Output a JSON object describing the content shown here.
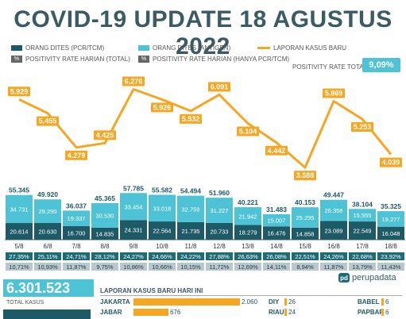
{
  "title": "COVID-19 UPDATE 18 AGUSTUS 2022",
  "legend": {
    "pcr": "ORANG DITES (PCR/TCM)",
    "antigen": "ORANG DITES (ANTIGEN)",
    "kasus": "LAPORAN KASUS BARU",
    "pos_total": "POSITIVITY RATE HARIAN (TOTAL)",
    "pos_pcr": "POSITIVITY RATE HARIAN (HANYA PCR/TCM)",
    "pos_rate_total_label": "POSITIVITY RATE TOTAL",
    "pos_rate_total_value": "9,09%",
    "pct_symbol": "%"
  },
  "colors": {
    "title": "#3a5a64",
    "pcr": "#1e5a66",
    "antigen": "#4ec3d6",
    "kasus": "#f5a623",
    "pos_total": "#1e6b78",
    "pos_pcr": "#b8c9cd"
  },
  "chart_data": {
    "type": "bar",
    "categories": [
      "5/8",
      "6/8",
      "7/8",
      "8/8",
      "9/8",
      "10/8",
      "11/8",
      "12/8",
      "13/8",
      "14/8",
      "15/8",
      "16/8",
      "17/8",
      "18/8"
    ],
    "series": [
      {
        "name": "ORANG DITES (PCR/TCM)",
        "values": [
          20614,
          20630,
          16700,
          14835,
          24331,
          22564,
          21735,
          20733,
          18279,
          16476,
          14858,
          23089,
          22549,
          16048
        ],
        "labels": [
          "20.614",
          "20.630",
          "16.700",
          "14.835",
          "24.331",
          "22.564",
          "21.735",
          "20.733",
          "18.279",
          "16.476",
          "14.858",
          "23.089",
          "22.549",
          "16.048"
        ]
      },
      {
        "name": "ORANG DITES (ANTIGEN)",
        "values": [
          34731,
          29290,
          19337,
          30530,
          33454,
          33018,
          32759,
          31227,
          21942,
          15007,
          25295,
          26358,
          15555,
          19277
        ],
        "labels": [
          "34.731",
          "29.290",
          "19.337",
          "30.530",
          "33.454",
          "33.018",
          "32.759",
          "31.227",
          "21.942",
          "15.007",
          "25.295",
          "26.358",
          "15.555",
          "19.277"
        ]
      },
      {
        "name": "LAPORAN KASUS BARU",
        "values": [
          5929,
          5455,
          4279,
          4425,
          6276,
          5926,
          5532,
          6091,
          5104,
          4442,
          3588,
          5869,
          5253,
          4039
        ],
        "labels": [
          "5.929",
          "5.455",
          "4.279",
          "4.425",
          "6.276",
          "5.926",
          "5.532",
          "6.091",
          "5.104",
          "4.442",
          "3.588",
          "5.869",
          "5.253",
          "4.039"
        ]
      },
      {
        "name": "POSITIVITY RATE HARIAN (TOTAL)",
        "values": [
          10.71,
          10.93,
          11.87,
          9.75,
          10.86,
          10.66,
          10.15,
          11.72,
          12.69,
          14.11,
          8.94,
          11.87,
          13.79,
          11.43
        ],
        "labels": [
          "10,71%",
          "10,93%",
          "11,87%",
          "9,75%",
          "10,86%",
          "10,66%",
          "10,15%",
          "11,72%",
          "12,69%",
          "14,11%",
          "8,94%",
          "11,87%",
          "13,79%",
          "11,43%"
        ]
      },
      {
        "name": "POSITIVITY RATE HARIAN (HANYA PCR/TCM)",
        "values": [
          27.35,
          25.11,
          24.71,
          28.12,
          24.27,
          24.66,
          24.22,
          27.88,
          26.63,
          26.08,
          22.51,
          24.26,
          22.68,
          23.92
        ],
        "labels": [
          "27,35%",
          "25,11%",
          "24,71%",
          "28,12%",
          "24,27%",
          "24,66%",
          "24,22%",
          "27,88%",
          "26,63%",
          "26,08%",
          "22,51%",
          "24,26%",
          "22,68%",
          "23,92%"
        ]
      }
    ],
    "totals": [
      55345,
      49920,
      36037,
      45365,
      57785,
      55582,
      54494,
      51960,
      40221,
      31483,
      40153,
      49447,
      38104,
      35325
    ],
    "total_labels": [
      "55.345",
      "49.920",
      "36.037",
      "45.365",
      "57.785",
      "55.582",
      "54.494",
      "51.960",
      "40.221",
      "31.483",
      "40.153",
      "49.447",
      "38.104",
      "35.325"
    ]
  },
  "summary": {
    "total_kasus_value": "6.301.523",
    "total_kasus_label": "TOTAL KASUS"
  },
  "brand": {
    "name": "perupadata",
    "mark": "pd"
  },
  "laporan": {
    "title": "LAPORAN KASUS BARU HARI INI",
    "items": [
      {
        "prov": "JAKARTA",
        "value": "2.060",
        "num": 2060
      },
      {
        "prov": "JABAR",
        "value": "676",
        "num": 676
      },
      {
        "prov": "DIY",
        "value": "26",
        "num": 26
      },
      {
        "prov": "RIAU",
        "value": "24",
        "num": 24
      },
      {
        "prov": "BABEL",
        "value": "6",
        "num": 6
      },
      {
        "prov": "PAPBAR",
        "value": "6",
        "num": 6
      }
    ]
  }
}
